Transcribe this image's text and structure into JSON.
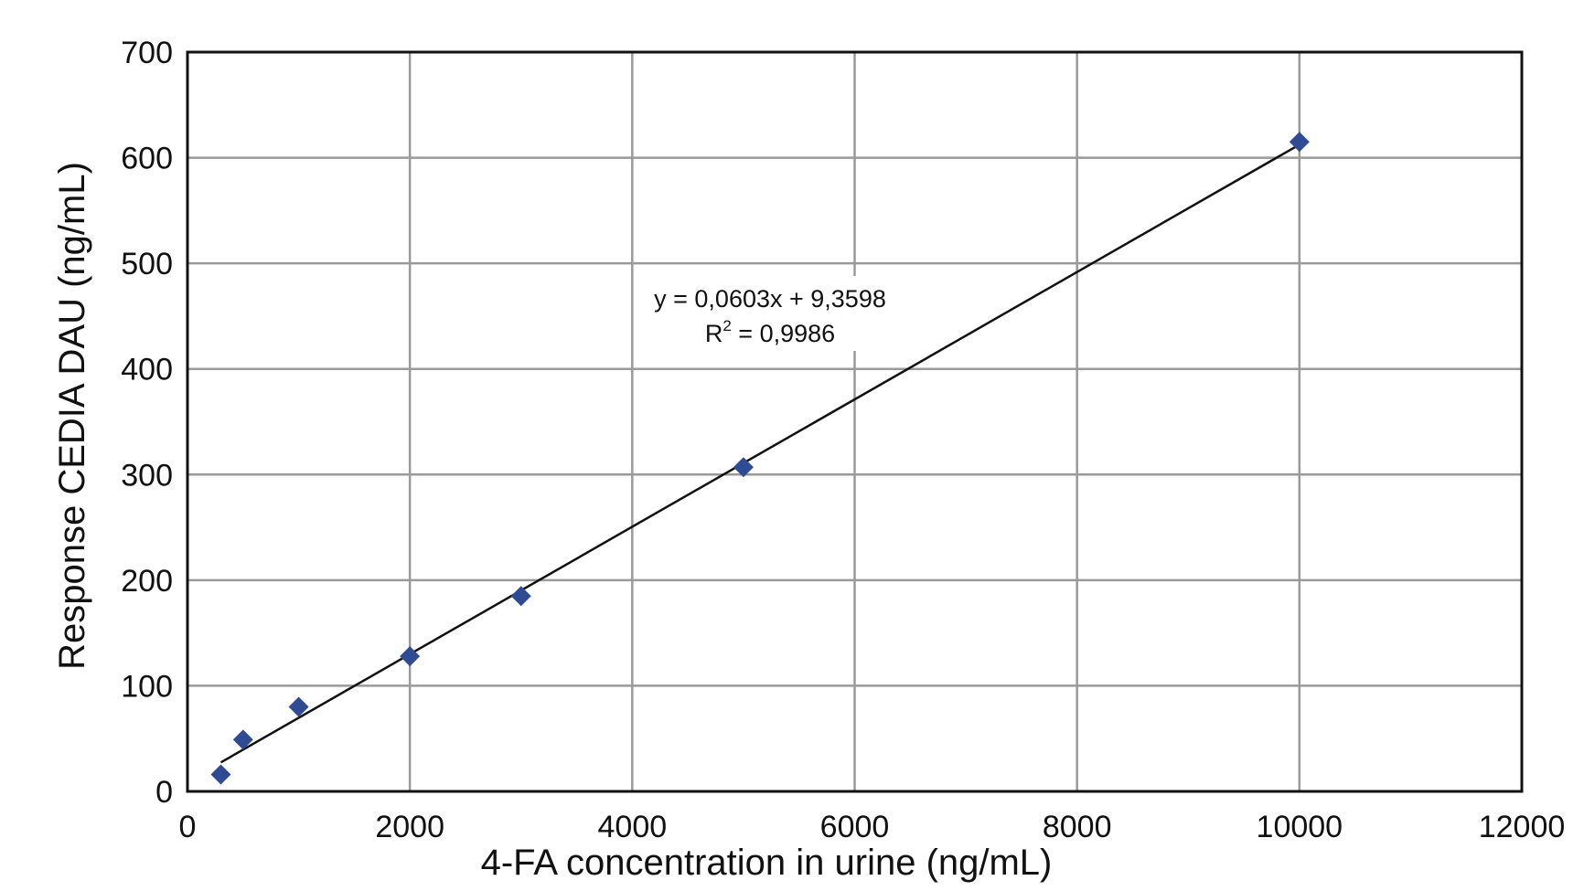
{
  "chart_data": {
    "type": "scatter",
    "title": "",
    "xlabel": "4-FA concentration in urine (ng/mL)",
    "ylabel": "Response CEDIA DAU (ng/mL)",
    "xlim": [
      0,
      12000
    ],
    "ylim": [
      0,
      700
    ],
    "x_ticks": [
      "0",
      "2000",
      "4000",
      "6000",
      "8000",
      "10000",
      "12000"
    ],
    "y_ticks": [
      "0",
      "100",
      "200",
      "300",
      "400",
      "500",
      "600",
      "700"
    ],
    "grid": true,
    "series": [
      {
        "x": [
          300,
          500,
          1000,
          2000,
          3000,
          5000,
          10000
        ],
        "y": [
          16,
          49,
          80,
          128,
          185,
          307,
          615
        ],
        "marker": "diamond",
        "color": "#2f4b93"
      }
    ],
    "trendline": {
      "slope": 0.0603,
      "intercept": 9.3598,
      "x_range": [
        300,
        10000
      ],
      "color": "#111111"
    },
    "annotation": {
      "equation": "y = 0,0603x + 9,3598",
      "r2_prefix": "R",
      "r2_exp": "2",
      "r2_value": " = 0,9986"
    }
  }
}
